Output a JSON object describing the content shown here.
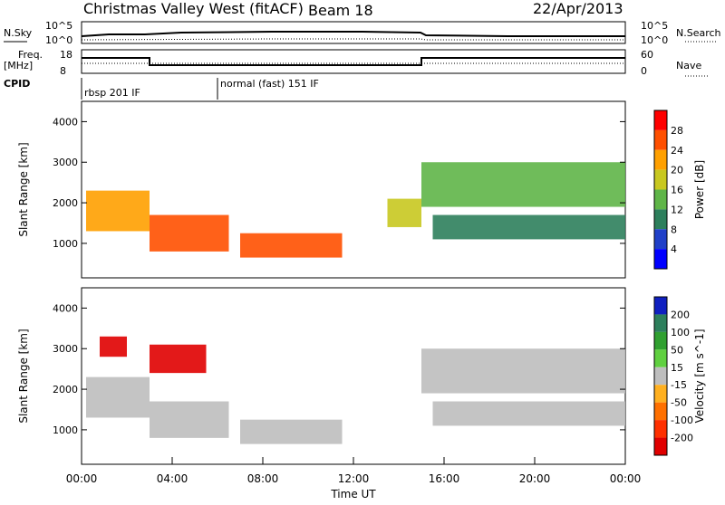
{
  "header": {
    "station": "Christmas Valley West (fitACF)",
    "beam": "Beam 18",
    "date": "22/Apr/2013"
  },
  "top_panels": {
    "nsky_label": "N.Sky",
    "nsearch_label": "N.Search",
    "freq_label_line1": "Freq.",
    "freq_label_line2": "[MHz]",
    "nave_label": "Nave",
    "cpid_label": "CPID",
    "nsky_ticks": [
      "10^5",
      "10^0"
    ],
    "nsearch_ticks": [
      "10^5",
      "10^0"
    ],
    "freq_ticks": [
      "18",
      "8"
    ],
    "nave_ticks": [
      "60",
      "0"
    ],
    "cpid_segments": [
      {
        "label": "rbsp 201 IF",
        "start_hour": 0
      },
      {
        "label": "normal (fast) 151 IF",
        "start_hour": 6
      }
    ]
  },
  "chart_data": [
    {
      "type": "heatmap",
      "panel": "power",
      "ylabel": "Slant Range [km]",
      "xlabel": "",
      "xlim": [
        0,
        24
      ],
      "ylim": [
        150,
        4500
      ],
      "yticks": [
        "1000",
        "2000",
        "3000",
        "4000"
      ],
      "colorbar_label": "Power [dB]",
      "colorbar_ticks": [
        "4",
        "8",
        "12",
        "16",
        "20",
        "24",
        "28"
      ],
      "colorbar_colors": [
        "#0000ff",
        "#2040c8",
        "#2d7f5c",
        "#5fb548",
        "#c8c820",
        "#ffa000",
        "#ff5000",
        "#ff0000"
      ],
      "regions": [
        {
          "t0": 0.2,
          "t1": 3.0,
          "r0": 1300,
          "r1": 2300,
          "level": 22
        },
        {
          "t0": 3.0,
          "t1": 6.5,
          "r0": 800,
          "r1": 1700,
          "level": 24
        },
        {
          "t0": 7.0,
          "t1": 11.5,
          "r0": 650,
          "r1": 1250,
          "level": 25
        },
        {
          "t0": 13.5,
          "t1": 15.0,
          "r0": 1400,
          "r1": 2100,
          "level": 18
        },
        {
          "t0": 15.0,
          "t1": 24.0,
          "r0": 1900,
          "r1": 3000,
          "level": 14
        },
        {
          "t0": 15.5,
          "t1": 24.0,
          "r0": 1100,
          "r1": 1700,
          "level": 9
        }
      ]
    },
    {
      "type": "heatmap",
      "panel": "velocity",
      "ylabel": "Slant Range [km]",
      "xlabel": "Time UT",
      "xlim": [
        0,
        24
      ],
      "ylim": [
        150,
        4500
      ],
      "xticks": [
        "00:00",
        "04:00",
        "08:00",
        "12:00",
        "16:00",
        "20:00",
        "00:00"
      ],
      "yticks": [
        "1000",
        "2000",
        "3000",
        "4000"
      ],
      "colorbar_label": "Velocity [m s^-1]",
      "colorbar_ticks": [
        "200",
        "100",
        "50",
        "15",
        "-15",
        "-50",
        "-100",
        "-200"
      ],
      "colorbar_colors": [
        "#1020c0",
        "#2d7f5c",
        "#30a030",
        "#60d040",
        "#bebebe",
        "#ffb020",
        "#ff7000",
        "#ff3000",
        "#e00000"
      ],
      "regions": [
        {
          "t0": 0.2,
          "t1": 3.0,
          "r0": 1300,
          "r1": 2300,
          "level": 0
        },
        {
          "t0": 3.0,
          "t1": 6.5,
          "r0": 800,
          "r1": 1700,
          "level": 0
        },
        {
          "t0": 7.0,
          "t1": 11.5,
          "r0": 650,
          "r1": 1250,
          "level": 0
        },
        {
          "t0": 3.0,
          "t1": 5.5,
          "r0": 2400,
          "r1": 3100,
          "level": -250
        },
        {
          "t0": 0.8,
          "t1": 2.0,
          "r0": 2800,
          "r1": 3300,
          "level": -250
        },
        {
          "t0": 15.0,
          "t1": 24.0,
          "r0": 1900,
          "r1": 3000,
          "level": 0
        },
        {
          "t0": 15.5,
          "t1": 24.0,
          "r0": 1100,
          "r1": 1700,
          "level": 0
        }
      ]
    }
  ]
}
